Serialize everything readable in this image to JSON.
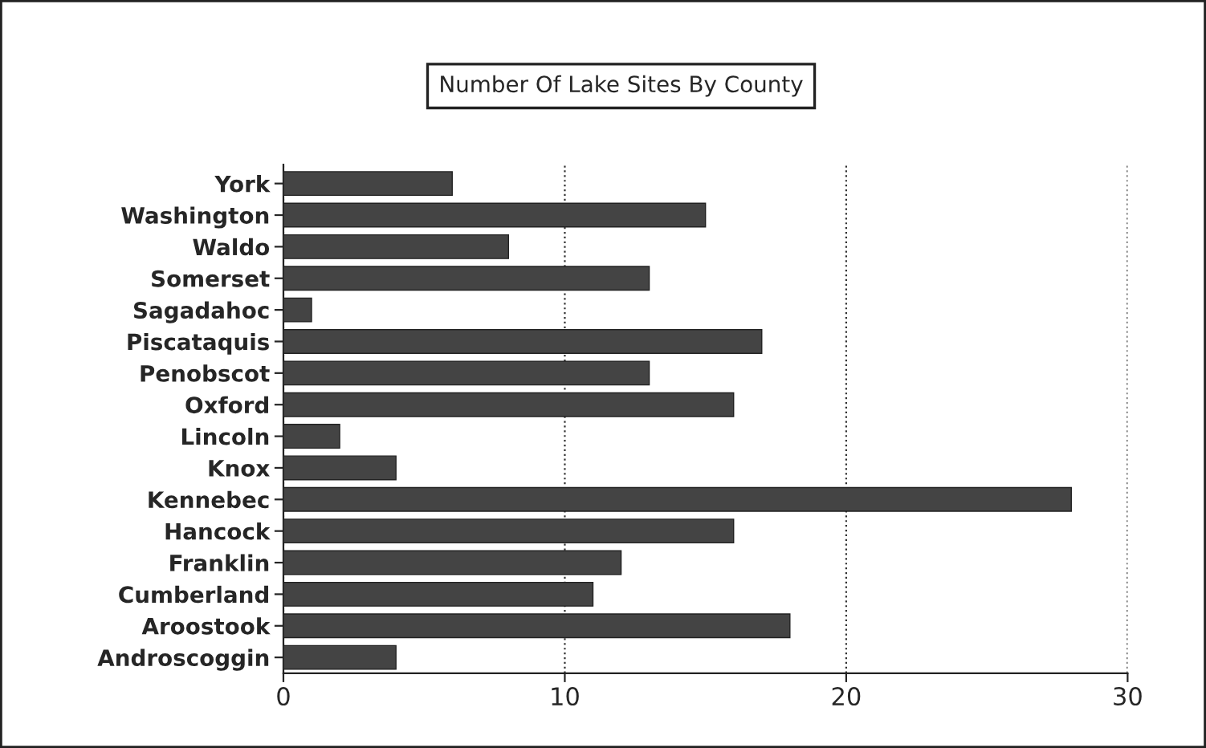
{
  "chart_data": {
    "type": "bar",
    "orientation": "horizontal",
    "title": "Number Of Lake Sites By County",
    "categories": [
      "York",
      "Washington",
      "Waldo",
      "Somerset",
      "Sagadahoc",
      "Piscataquis",
      "Penobscot",
      "Oxford",
      "Lincoln",
      "Knox",
      "Kennebec",
      "Hancock",
      "Franklin",
      "Cumberland",
      "Aroostook",
      "Androscoggin"
    ],
    "values": [
      6,
      15,
      8,
      13,
      1,
      17,
      13,
      16,
      2,
      4,
      28,
      16,
      12,
      11,
      18,
      4
    ],
    "color": "#444444",
    "xlim": [
      0,
      30
    ],
    "xticks": [
      0,
      10,
      20,
      30
    ],
    "grid": "x"
  }
}
